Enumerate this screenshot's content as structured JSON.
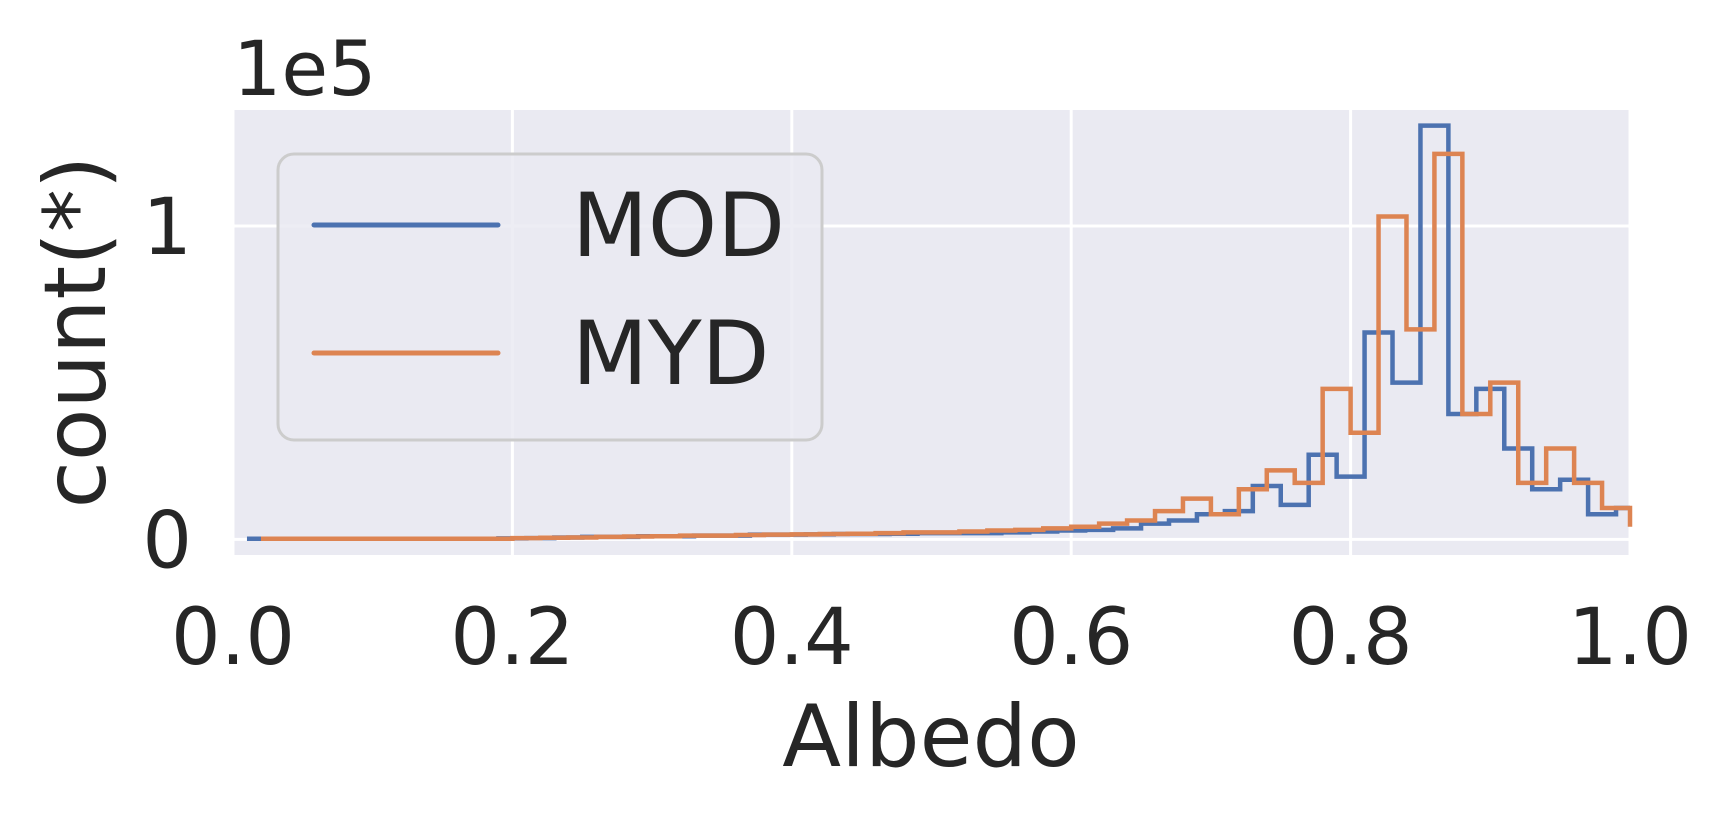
{
  "chart_data": {
    "type": "line",
    "style": "step-histogram",
    "title": "",
    "xlabel": "Albedo",
    "ylabel": "count(*)",
    "y_offset_label": "1e5",
    "xlim": [
      0.0,
      1.0
    ],
    "ylim": [
      -0.05,
      1.37
    ],
    "x_ticks": [
      0.0,
      0.2,
      0.4,
      0.6,
      0.8,
      1.0
    ],
    "x_tick_labels": [
      "0.0",
      "0.2",
      "0.4",
      "0.6",
      "0.8",
      "1.0"
    ],
    "y_ticks": [
      0,
      1
    ],
    "y_tick_labels": [
      "0",
      "1"
    ],
    "grid": true,
    "background": "#eaeaf2",
    "legend": {
      "placement": "upper-left",
      "entries": [
        "MOD",
        "MYD"
      ]
    },
    "bin_width": 0.02,
    "series": [
      {
        "name": "MOD",
        "color": "#4c72b0",
        "bin_edges": [
          0.01,
          0.03,
          0.05,
          0.07,
          0.09,
          0.11,
          0.13,
          0.15,
          0.17,
          0.19,
          0.21,
          0.23,
          0.25,
          0.27,
          0.29,
          0.31,
          0.33,
          0.35,
          0.37,
          0.39,
          0.41,
          0.43,
          0.45,
          0.47,
          0.49,
          0.51,
          0.53,
          0.55,
          0.57,
          0.59,
          0.61,
          0.63,
          0.65,
          0.67,
          0.69,
          0.71,
          0.73,
          0.75,
          0.77,
          0.79,
          0.81,
          0.83,
          0.85,
          0.87,
          0.89,
          0.91,
          0.93,
          0.95,
          0.97,
          0.99,
          1.01
        ],
        "values": [
          0.002,
          0.002,
          0.002,
          0.002,
          0.002,
          0.002,
          0.002,
          0.002,
          0.002,
          0.003,
          0.004,
          0.006,
          0.008,
          0.008,
          0.01,
          0.01,
          0.012,
          0.012,
          0.015,
          0.015,
          0.016,
          0.017,
          0.017,
          0.018,
          0.02,
          0.02,
          0.02,
          0.022,
          0.025,
          0.028,
          0.03,
          0.035,
          0.05,
          0.06,
          0.08,
          0.09,
          0.17,
          0.11,
          0.27,
          0.2,
          0.66,
          0.5,
          1.32,
          0.4,
          0.48,
          0.29,
          0.16,
          0.19,
          0.08,
          0.1
        ]
      },
      {
        "name": "MYD",
        "color": "#dd8452",
        "bin_edges": [
          0.02,
          0.04,
          0.06,
          0.08,
          0.1,
          0.12,
          0.14,
          0.16,
          0.18,
          0.2,
          0.22,
          0.24,
          0.26,
          0.28,
          0.3,
          0.32,
          0.34,
          0.36,
          0.38,
          0.4,
          0.42,
          0.44,
          0.46,
          0.48,
          0.5,
          0.52,
          0.54,
          0.56,
          0.58,
          0.6,
          0.62,
          0.64,
          0.66,
          0.68,
          0.7,
          0.72,
          0.74,
          0.76,
          0.78,
          0.8,
          0.82,
          0.84,
          0.86,
          0.88,
          0.9,
          0.92,
          0.94,
          0.96,
          0.98,
          1.0
        ],
        "values": [
          0.002,
          0.002,
          0.002,
          0.002,
          0.002,
          0.002,
          0.002,
          0.002,
          0.002,
          0.004,
          0.005,
          0.006,
          0.008,
          0.009,
          0.01,
          0.012,
          0.012,
          0.014,
          0.015,
          0.016,
          0.017,
          0.018,
          0.02,
          0.022,
          0.022,
          0.025,
          0.028,
          0.03,
          0.035,
          0.04,
          0.05,
          0.06,
          0.09,
          0.13,
          0.08,
          0.16,
          0.22,
          0.18,
          0.48,
          0.34,
          1.03,
          0.67,
          1.23,
          0.4,
          0.5,
          0.18,
          0.29,
          0.18,
          0.1,
          0.04
        ]
      }
    ]
  }
}
